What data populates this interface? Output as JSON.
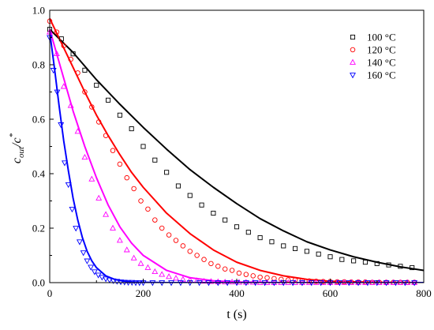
{
  "chart_data": {
    "type": "scatter",
    "xlabel": "t (s)",
    "ylabel_main": "c",
    "ylabel_sub1": "out",
    "ylabel_mid": "/c",
    "ylabel_sup": "*",
    "xlim": [
      0,
      800
    ],
    "ylim": [
      0,
      1.0
    ],
    "x_ticks": [
      0,
      200,
      400,
      600,
      800
    ],
    "x_tick_labels": [
      "0",
      "200",
      "400",
      "600",
      "800"
    ],
    "y_ticks": [
      0,
      0.2,
      0.4,
      0.6,
      0.8,
      1.0
    ],
    "y_tick_labels": [
      "0.0",
      "0.2",
      "0.4",
      "0.6",
      "0.8",
      "1.0"
    ],
    "grid": false,
    "legend_position": "top-right",
    "series": [
      {
        "name": "100 °C",
        "color": "#000000",
        "marker": "square",
        "x": [
          0,
          25,
          50,
          75,
          100,
          125,
          150,
          175,
          200,
          225,
          250,
          275,
          300,
          325,
          350,
          375,
          400,
          425,
          450,
          475,
          500,
          525,
          550,
          575,
          600,
          625,
          650,
          675,
          700,
          725,
          750,
          775
        ],
        "y": [
          0.93,
          0.895,
          0.84,
          0.78,
          0.725,
          0.67,
          0.615,
          0.565,
          0.5,
          0.45,
          0.405,
          0.355,
          0.32,
          0.285,
          0.255,
          0.23,
          0.205,
          0.185,
          0.165,
          0.15,
          0.135,
          0.125,
          0.115,
          0.105,
          0.095,
          0.085,
          0.08,
          0.075,
          0.07,
          0.065,
          0.06,
          0.055
        ],
        "fit_x": [
          0,
          50,
          100,
          150,
          200,
          250,
          300,
          350,
          400,
          450,
          500,
          550,
          600,
          650,
          700,
          750,
          800
        ],
        "fit_y": [
          0.93,
          0.845,
          0.745,
          0.655,
          0.57,
          0.49,
          0.415,
          0.35,
          0.29,
          0.235,
          0.19,
          0.15,
          0.12,
          0.095,
          0.075,
          0.058,
          0.045
        ]
      },
      {
        "name": "120 °C",
        "color": "#ff0000",
        "marker": "circle",
        "x": [
          0,
          15,
          30,
          45,
          60,
          75,
          90,
          105,
          120,
          135,
          150,
          165,
          180,
          195,
          210,
          225,
          240,
          255,
          270,
          285,
          300,
          315,
          330,
          345,
          360,
          375,
          390,
          405,
          420,
          435,
          450,
          465,
          480,
          495,
          510,
          525,
          540,
          555,
          570,
          585,
          600,
          615,
          630,
          645,
          660,
          675,
          690,
          705,
          720,
          735,
          750,
          765,
          780
        ],
        "y": [
          0.96,
          0.92,
          0.87,
          0.82,
          0.77,
          0.7,
          0.645,
          0.59,
          0.54,
          0.485,
          0.435,
          0.385,
          0.345,
          0.3,
          0.27,
          0.23,
          0.2,
          0.175,
          0.155,
          0.135,
          0.115,
          0.1,
          0.085,
          0.07,
          0.06,
          0.05,
          0.045,
          0.035,
          0.03,
          0.025,
          0.02,
          0.018,
          0.015,
          0.012,
          0.01,
          0.01,
          0.008,
          0.006,
          0.005,
          0.004,
          0.004,
          0.003,
          0.003,
          0.002,
          0.002,
          0.002,
          0.001,
          0.001,
          0.001,
          0.001,
          0.001,
          0.001,
          0.001
        ],
        "fit_x": [
          0,
          25,
          50,
          75,
          100,
          125,
          150,
          175,
          200,
          250,
          300,
          350,
          400,
          450,
          500,
          550,
          600,
          700,
          800
        ],
        "fit_y": [
          0.97,
          0.88,
          0.79,
          0.7,
          0.615,
          0.54,
          0.47,
          0.405,
          0.35,
          0.255,
          0.18,
          0.12,
          0.075,
          0.045,
          0.025,
          0.012,
          0.005,
          0.001,
          0.0
        ]
      },
      {
        "name": "140 °C",
        "color": "#ff00ff",
        "marker": "triangle-up",
        "x": [
          0,
          15,
          30,
          45,
          60,
          75,
          90,
          105,
          120,
          135,
          150,
          165,
          180,
          195,
          210,
          225,
          240,
          255,
          270,
          285,
          300,
          315,
          330,
          345,
          360,
          375,
          390,
          405,
          420,
          435,
          450,
          465,
          480,
          495,
          510,
          525,
          540,
          555,
          570,
          585,
          600,
          615,
          630,
          645,
          660,
          675,
          690,
          705,
          720,
          735,
          750,
          765,
          780
        ],
        "y": [
          0.92,
          0.84,
          0.72,
          0.65,
          0.555,
          0.46,
          0.38,
          0.31,
          0.25,
          0.2,
          0.155,
          0.12,
          0.09,
          0.07,
          0.055,
          0.04,
          0.03,
          0.022,
          0.016,
          0.012,
          0.009,
          0.007,
          0.005,
          0.004,
          0.003,
          0.002,
          0.002,
          0.001,
          0.001,
          0.001,
          0.0,
          0.0,
          0.0,
          0.0,
          0.0,
          0.0,
          0.0,
          0.0,
          0.0,
          0.0,
          0.0,
          0.0,
          0.0,
          0.0,
          0.0,
          0.0,
          0.0,
          0.0,
          0.0,
          0.0,
          0.0,
          0.0,
          0.0
        ],
        "fit_x": [
          0,
          25,
          50,
          75,
          100,
          125,
          150,
          175,
          200,
          250,
          300,
          350,
          400,
          500,
          600,
          800
        ],
        "fit_y": [
          0.93,
          0.78,
          0.63,
          0.5,
          0.385,
          0.285,
          0.205,
          0.145,
          0.1,
          0.045,
          0.018,
          0.007,
          0.002,
          0.0,
          0.0,
          0.0
        ]
      },
      {
        "name": "160 °C",
        "color": "#0000ff",
        "marker": "triangle-down",
        "x": [
          0,
          8,
          16,
          24,
          32,
          40,
          48,
          56,
          64,
          72,
          80,
          88,
          96,
          104,
          112,
          120,
          128,
          136,
          144,
          152,
          160,
          168,
          176,
          184,
          192,
          200,
          220,
          240,
          260,
          280,
          300,
          320,
          340,
          360,
          380,
          400,
          420,
          440,
          460,
          480,
          500,
          520,
          540,
          560,
          580,
          600,
          620,
          640,
          660,
          680,
          700,
          720,
          740,
          760,
          780
        ],
        "y": [
          0.9,
          0.78,
          0.7,
          0.58,
          0.44,
          0.36,
          0.27,
          0.2,
          0.15,
          0.11,
          0.08,
          0.057,
          0.04,
          0.028,
          0.02,
          0.014,
          0.01,
          0.007,
          0.005,
          0.003,
          0.002,
          0.001,
          0.001,
          0.0,
          0.0,
          0.0,
          0.0,
          0.0,
          0.0,
          0.0,
          0.0,
          0.0,
          0.0,
          0.0,
          0.0,
          0.0,
          0.0,
          0.0,
          0.0,
          0.0,
          0.0,
          0.0,
          0.0,
          0.0,
          0.0,
          0.0,
          0.0,
          0.0,
          0.0,
          0.0,
          0.0,
          0.0,
          0.0,
          0.0,
          0.0
        ],
        "fit_x": [
          0,
          10,
          20,
          30,
          40,
          50,
          60,
          70,
          80,
          90,
          100,
          120,
          140,
          160,
          180,
          200,
          250,
          300,
          400,
          600,
          800
        ],
        "fit_y": [
          0.92,
          0.79,
          0.65,
          0.52,
          0.41,
          0.31,
          0.23,
          0.165,
          0.115,
          0.08,
          0.055,
          0.025,
          0.011,
          0.005,
          0.002,
          0.001,
          0.0,
          0.0,
          0.0,
          0.0,
          0.0
        ]
      }
    ]
  }
}
